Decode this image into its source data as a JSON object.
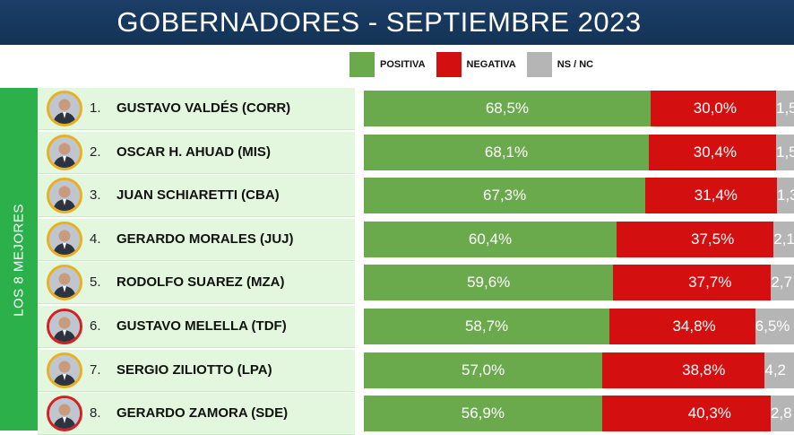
{
  "header": {
    "title": "GOBERNADORES - SEPTIEMBRE 2023"
  },
  "side_label": "LOS 8 MEJORES",
  "colors": {
    "positiva": "#6aaa4c",
    "negativa": "#d40f0f",
    "nsnc": "#b5b5b5",
    "band": "#2bb04a",
    "header": "#1c3f66"
  },
  "chart_data": {
    "type": "bar",
    "orientation": "horizontal-stacked",
    "title": "GOBERNADORES - SEPTIEMBRE 2023",
    "legend": {
      "position": "top",
      "entries": [
        "POSITIVA",
        "NEGATIVA",
        "NS / NC"
      ]
    },
    "ranks": [
      "1.",
      "2.",
      "3.",
      "4.",
      "5.",
      "6.",
      "7.",
      "8."
    ],
    "categories": [
      "GUSTAVO VALDÉS (CORR)",
      "OSCAR H. AHUAD (MIS)",
      "JUAN SCHIARETTI (CBA)",
      "GERARDO MORALES (JUJ)",
      "RODOLFO SUAREZ (MZA)",
      "GUSTAVO MELELLA (TDF)",
      "SERGIO ZILIOTTO (LPA)",
      "GERARDO ZAMORA (SDE)"
    ],
    "avatar_ring_colors": [
      "#e8b020",
      "#e8b020",
      "#e8b020",
      "#e8b020",
      "#e8b020",
      "#d42020",
      "#e8b020",
      "#d42020"
    ],
    "series": [
      {
        "name": "POSITIVA",
        "values": [
          68.5,
          68.1,
          67.3,
          60.4,
          59.6,
          58.7,
          57.0,
          56.9
        ],
        "labels": [
          "68,5%",
          "68,1%",
          "67,3%",
          "60,4%",
          "59,6%",
          "58,7%",
          "57,0%",
          "56,9%"
        ]
      },
      {
        "name": "NEGATIVA",
        "values": [
          30.0,
          30.4,
          31.4,
          37.5,
          37.7,
          34.8,
          38.8,
          40.3
        ],
        "labels": [
          "30,0%",
          "30,4%",
          "31,4%",
          "37,5%",
          "37,7%",
          "34,8%",
          "38,8%",
          "40,3%"
        ]
      },
      {
        "name": "NS / NC",
        "values": [
          1.5,
          1.5,
          1.3,
          2.1,
          2.7,
          6.5,
          4.2,
          2.8
        ],
        "labels": [
          "1,5",
          "1,5",
          "1,3",
          "2,1",
          "2,7",
          "6,5%",
          "4,2",
          "2,8"
        ]
      }
    ]
  }
}
